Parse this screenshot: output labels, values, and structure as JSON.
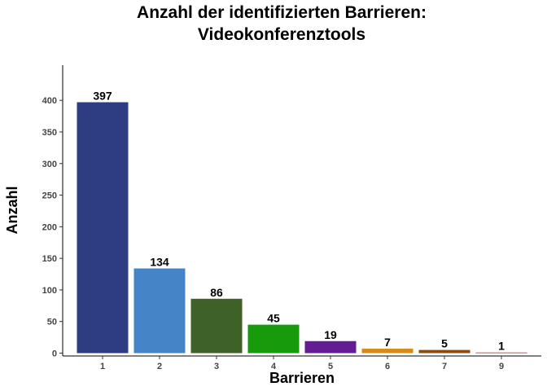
{
  "chart_data": {
    "type": "bar",
    "title_lines": [
      "Anzahl der identifizierten Barrieren:",
      "Videokonferenztools"
    ],
    "xlabel": "Barrieren",
    "ylabel": "Anzahl",
    "categories": [
      "1",
      "2",
      "3",
      "4",
      "5",
      "6",
      "7",
      "9"
    ],
    "values": [
      397,
      134,
      86,
      45,
      19,
      7,
      5,
      1
    ],
    "value_labels": [
      "397",
      "134",
      "86",
      "45",
      "19",
      "7",
      "5",
      "1"
    ],
    "colors": [
      "#2E3C82",
      "#4584C6",
      "#3D6127",
      "#179B0C",
      "#631C94",
      "#D58A1A",
      "#8B4A12",
      "#C0272D"
    ],
    "ylim": [
      0,
      445
    ],
    "yticks": [
      0,
      50,
      100,
      150,
      200,
      250,
      300,
      350,
      400
    ],
    "ytick_labels": [
      "0",
      "50",
      "100",
      "150",
      "200",
      "250",
      "300",
      "350",
      "400"
    ],
    "grid": false,
    "legend": "none"
  }
}
